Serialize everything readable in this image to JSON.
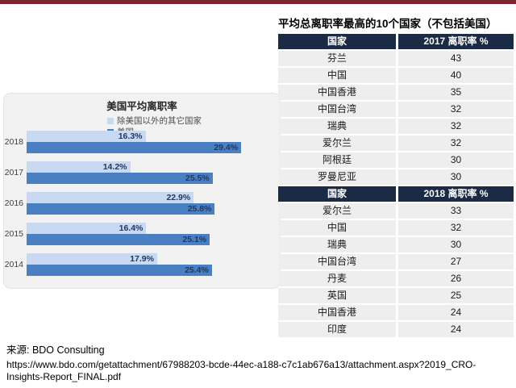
{
  "page": {
    "background": "#ffffff",
    "top_accent_color": "#7a2531"
  },
  "chart_data": [
    {
      "type": "bar",
      "orientation": "horizontal",
      "title": "美国平均离职率",
      "categories": [
        "2018",
        "2017",
        "2016",
        "2015",
        "2014"
      ],
      "series": [
        {
          "name": "除美国以外的其它国家",
          "color": "#c9d9f1",
          "values": [
            16.3,
            14.2,
            22.9,
            16.4,
            17.9
          ]
        },
        {
          "name": "美国",
          "color": "#4a7fc1",
          "values": [
            29.4,
            25.5,
            25.8,
            25.1,
            25.4
          ]
        }
      ],
      "value_suffix": "%",
      "data_labels": true,
      "xlim": [
        0,
        33
      ],
      "grid": false,
      "legend_position": "top",
      "value_label_color": "#1f3864",
      "panel_background": "#f2f2f2"
    },
    {
      "type": "table",
      "title": "平均总离职率最高的10个国家（不包括美国）",
      "columns": [
        "国家",
        "2017 离职率 %"
      ],
      "header_bg": "#1b2a45",
      "row_bg": "#eeeeee",
      "rows": [
        [
          "芬兰",
          "43"
        ],
        [
          "中国",
          "40"
        ],
        [
          "中国香港",
          "35"
        ],
        [
          "中国台湾",
          "32"
        ],
        [
          "瑞典",
          "32"
        ],
        [
          "爱尔兰",
          "32"
        ],
        [
          "阿根廷",
          "30"
        ],
        [
          "罗曼尼亚",
          "30"
        ]
      ]
    },
    {
      "type": "table",
      "columns": [
        "国家",
        "2018 离职率 %"
      ],
      "header_bg": "#1b2a45",
      "row_bg": "#eeeeee",
      "rows": [
        [
          "爱尔兰",
          "33"
        ],
        [
          "中国",
          "32"
        ],
        [
          "瑞典",
          "30"
        ],
        [
          "中国台湾",
          "27"
        ],
        [
          "丹麦",
          "26"
        ],
        [
          "英国",
          "25"
        ],
        [
          "中国香港",
          "24"
        ],
        [
          "印度",
          "24"
        ]
      ]
    }
  ],
  "source": {
    "label": "来源: BDO Consulting",
    "url_lines": [
      "https://www.bdo.com/getattachment/67988203-bcde-44ec-a188-c7c1ab676a13/attachment.aspx?2019_CRO-",
      "Insights-Report_FINAL.pdf"
    ]
  }
}
